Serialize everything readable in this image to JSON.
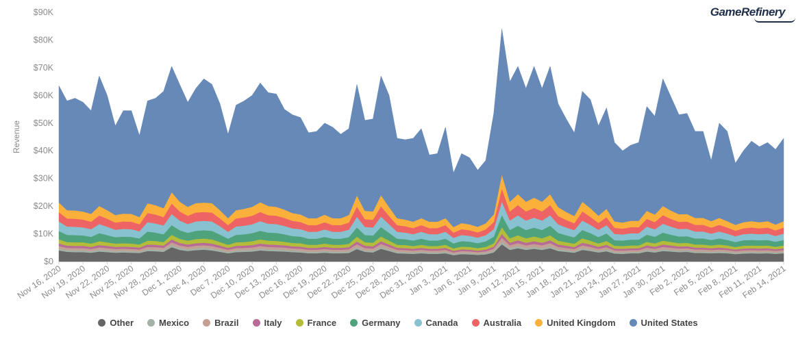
{
  "brand": {
    "name": "GameRefinery"
  },
  "chart_data": {
    "type": "area",
    "stacked": true,
    "title": "",
    "xlabel": "",
    "ylabel": "Revenue",
    "ylim": [
      0,
      90000
    ],
    "yticks": [
      0,
      10000,
      20000,
      30000,
      40000,
      50000,
      60000,
      70000,
      80000,
      90000
    ],
    "ytick_labels": [
      "$0",
      "$10K",
      "$20K",
      "$30K",
      "$40K",
      "$50K",
      "$60K",
      "$70K",
      "$80K",
      "$90K"
    ],
    "x": [
      "Nov 16, 2020",
      "Nov 17, 2020",
      "Nov 18, 2020",
      "Nov 19, 2020",
      "Nov 20, 2020",
      "Nov 21, 2020",
      "Nov 22, 2020",
      "Nov 23, 2020",
      "Nov 24, 2020",
      "Nov 25, 2020",
      "Nov 26, 2020",
      "Nov 27, 2020",
      "Nov 28, 2020",
      "Nov 29, 2020",
      "Nov 30, 2020",
      "Dec 1, 2020",
      "Dec 2, 2020",
      "Dec 3, 2020",
      "Dec 4, 2020",
      "Dec 5, 2020",
      "Dec 6, 2020",
      "Dec 7, 2020",
      "Dec 8, 2020",
      "Dec 9, 2020",
      "Dec 10, 2020",
      "Dec 11, 2020",
      "Dec 12, 2020",
      "Dec 13, 2020",
      "Dec 14, 2020",
      "Dec 15, 2020",
      "Dec 16, 2020",
      "Dec 17, 2020",
      "Dec 18, 2020",
      "Dec 19, 2020",
      "Dec 20, 2020",
      "Dec 21, 2020",
      "Dec 22, 2020",
      "Dec 23, 2020",
      "Dec 24, 2020",
      "Dec 25, 2020",
      "Dec 26, 2020",
      "Dec 27, 2020",
      "Dec 28, 2020",
      "Dec 29, 2020",
      "Dec 30, 2020",
      "Dec 31, 2020",
      "Jan 1, 2021",
      "Jan 2, 2021",
      "Jan 3, 2021",
      "Jan 4, 2021",
      "Jan 5, 2021",
      "Jan 6, 2021",
      "Jan 7, 2021",
      "Jan 8, 2021",
      "Jan 9, 2021",
      "Jan 10, 2021",
      "Jan 11, 2021",
      "Jan 12, 2021",
      "Jan 13, 2021",
      "Jan 14, 2021",
      "Jan 15, 2021",
      "Jan 16, 2021",
      "Jan 17, 2021",
      "Jan 18, 2021",
      "Jan 19, 2021",
      "Jan 20, 2021",
      "Jan 21, 2021",
      "Jan 22, 2021",
      "Jan 23, 2021",
      "Jan 24, 2021",
      "Jan 25, 2021",
      "Jan 26, 2021",
      "Jan 27, 2021",
      "Jan 28, 2021",
      "Jan 29, 2021",
      "Jan 30, 2021",
      "Jan 31, 2021",
      "Feb 1, 2021",
      "Feb 2, 2021",
      "Feb 3, 2021",
      "Feb 4, 2021",
      "Feb 5, 2021",
      "Feb 6, 2021",
      "Feb 7, 2021",
      "Feb 8, 2021",
      "Feb 9, 2021",
      "Feb 10, 2021",
      "Feb 11, 2021",
      "Feb 12, 2021",
      "Feb 13, 2021",
      "Feb 14, 2021"
    ],
    "xtick_labels": [
      "Nov 16, 2020",
      "Nov 19, 2020",
      "Nov 22, 2020",
      "Nov 25, 2020",
      "Nov 28, 2020",
      "Dec 1, 2020",
      "Dec 4, 2020",
      "Dec 7, 2020",
      "Dec 10, 2020",
      "Dec 13, 2020",
      "Dec 16, 2020",
      "Dec 19, 2020",
      "Dec 22, 2020",
      "Dec 25, 2020",
      "Dec 28, 2020",
      "Dec 31, 2020",
      "Jan 3, 2021",
      "Jan 6, 2021",
      "Jan 9, 2021",
      "Jan 12, 2021",
      "Jan 15, 2021",
      "Jan 18, 2021",
      "Jan 21, 2021",
      "Jan 24, 2021",
      "Jan 27, 2021",
      "Jan 30, 2021",
      "Feb 2, 2021",
      "Feb 5, 2021",
      "Feb 8, 2021",
      "Feb 11, 2021",
      "Feb 14, 2021"
    ],
    "legend_position": "bottom",
    "grid": false,
    "total": [
      63500,
      58000,
      59000,
      57500,
      54500,
      67000,
      60000,
      49000,
      54500,
      54500,
      45500,
      58000,
      59000,
      61500,
      70500,
      64000,
      57500,
      62500,
      66000,
      64000,
      57000,
      46000,
      56500,
      58000,
      60000,
      64500,
      61000,
      60500,
      55000,
      53000,
      52000,
      46500,
      47000,
      50000,
      48500,
      46000,
      48000,
      64000,
      51000,
      51500,
      67000,
      60000,
      44500,
      44000,
      44500,
      48000,
      38500,
      39000,
      48500,
      32000,
      39000,
      37500,
      33000,
      36500,
      53500,
      84000,
      65000,
      70500,
      62500,
      70500,
      62500,
      70500,
      57000,
      51500,
      46500,
      61500,
      58500,
      49000,
      55500,
      43000,
      40000,
      42000,
      43000,
      56000,
      52500,
      66000,
      59500,
      53000,
      53500,
      47000,
      47000,
      36500,
      50000,
      47000,
      35500,
      40000,
      43500,
      41500,
      43000,
      40500,
      44500
    ],
    "series": [
      {
        "name": "Other",
        "color": "#666666",
        "values": [
          4000,
          3500,
          3400,
          3400,
          3200,
          3600,
          3400,
          3200,
          3300,
          3200,
          3100,
          3800,
          3700,
          3500,
          5200,
          4200,
          3800,
          4100,
          4300,
          4000,
          3500,
          3000,
          3400,
          3500,
          3600,
          4000,
          3800,
          3700,
          3600,
          3400,
          3300,
          3000,
          3000,
          3200,
          3000,
          3000,
          3100,
          4500,
          3500,
          3300,
          4600,
          3800,
          3000,
          2900,
          2800,
          3000,
          2800,
          2800,
          3000,
          2300,
          2700,
          2600,
          2400,
          2600,
          3300,
          6200,
          4200,
          4800,
          4200,
          4600,
          4200,
          4800,
          3800,
          3500,
          3200,
          4200,
          3800,
          3300,
          3700,
          2900,
          2800,
          3000,
          3000,
          3600,
          3300,
          3800,
          3600,
          3400,
          3500,
          3100,
          3100,
          3000,
          3100,
          3000,
          2700,
          2900,
          3000,
          2900,
          3000,
          2800,
          3000
        ]
      },
      {
        "name": "Mexico",
        "color": "#a3b1a6",
        "values": [
          700,
          650,
          650,
          650,
          600,
          650,
          650,
          600,
          600,
          600,
          550,
          650,
          650,
          650,
          750,
          700,
          650,
          700,
          700,
          700,
          650,
          550,
          650,
          650,
          650,
          700,
          650,
          650,
          650,
          600,
          600,
          550,
          550,
          600,
          550,
          550,
          600,
          750,
          600,
          600,
          750,
          650,
          550,
          550,
          500,
          550,
          500,
          500,
          550,
          450,
          500,
          500,
          450,
          500,
          600,
          1000,
          700,
          800,
          700,
          750,
          700,
          800,
          650,
          600,
          550,
          700,
          650,
          550,
          650,
          500,
          500,
          500,
          500,
          600,
          550,
          650,
          600,
          550,
          550,
          550,
          550,
          500,
          550,
          500,
          450,
          500,
          500,
          500,
          500,
          450,
          500
        ]
      },
      {
        "name": "Brazil",
        "color": "#c4a094",
        "values": [
          900,
          800,
          800,
          800,
          750,
          850,
          800,
          750,
          750,
          750,
          700,
          850,
          850,
          800,
          1000,
          900,
          850,
          900,
          900,
          900,
          800,
          700,
          800,
          800,
          850,
          900,
          850,
          850,
          800,
          750,
          750,
          700,
          700,
          750,
          700,
          700,
          750,
          1000,
          800,
          800,
          1000,
          850,
          700,
          700,
          650,
          700,
          650,
          650,
          700,
          550,
          600,
          600,
          550,
          600,
          750,
          1400,
          950,
          1050,
          950,
          1000,
          950,
          1050,
          850,
          800,
          750,
          950,
          850,
          750,
          850,
          650,
          650,
          650,
          650,
          800,
          750,
          850,
          800,
          750,
          750,
          700,
          700,
          650,
          700,
          650,
          600,
          650,
          650,
          650,
          650,
          600,
          650
        ]
      },
      {
        "name": "Italy",
        "color": "#b86b96",
        "values": [
          900,
          800,
          800,
          800,
          750,
          850,
          800,
          750,
          750,
          750,
          700,
          850,
          850,
          800,
          1000,
          900,
          850,
          900,
          900,
          900,
          800,
          700,
          800,
          800,
          850,
          900,
          850,
          850,
          800,
          750,
          750,
          700,
          700,
          750,
          700,
          700,
          750,
          1000,
          800,
          800,
          1000,
          850,
          700,
          700,
          650,
          700,
          650,
          650,
          700,
          550,
          600,
          600,
          550,
          600,
          750,
          1400,
          950,
          1050,
          950,
          1000,
          950,
          1050,
          850,
          800,
          750,
          950,
          850,
          750,
          850,
          650,
          650,
          650,
          650,
          800,
          750,
          850,
          800,
          750,
          750,
          700,
          700,
          650,
          700,
          650,
          600,
          650,
          650,
          650,
          650,
          600,
          650
        ]
      },
      {
        "name": "France",
        "color": "#b5bc3a",
        "values": [
          1500,
          1300,
          1300,
          1300,
          1200,
          1400,
          1300,
          1200,
          1200,
          1200,
          1100,
          1400,
          1400,
          1300,
          1700,
          1500,
          1400,
          1500,
          1500,
          1500,
          1300,
          1100,
          1300,
          1300,
          1400,
          1500,
          1400,
          1400,
          1300,
          1200,
          1200,
          1100,
          1100,
          1200,
          1100,
          1100,
          1200,
          1700,
          1300,
          1300,
          1700,
          1400,
          1100,
          1100,
          1000,
          1100,
          1000,
          1000,
          1100,
          900,
          1000,
          1000,
          900,
          1000,
          1200,
          2400,
          1600,
          1800,
          1600,
          1700,
          1600,
          1800,
          1400,
          1300,
          1200,
          1600,
          1400,
          1200,
          1400,
          1000,
          1000,
          1000,
          1000,
          1300,
          1200,
          1400,
          1300,
          1200,
          1200,
          1100,
          1100,
          1000,
          1100,
          1000,
          900,
          1000,
          1000,
          1000,
          1000,
          900,
          1000
        ]
      },
      {
        "name": "Germany",
        "color": "#4ea37c",
        "values": [
          3000,
          2600,
          2600,
          2500,
          2400,
          2900,
          2600,
          2300,
          2400,
          2400,
          2200,
          3300,
          3000,
          2800,
          3500,
          3100,
          2800,
          3000,
          3000,
          3100,
          2700,
          2200,
          2700,
          2800,
          2900,
          3100,
          2900,
          2900,
          2700,
          2500,
          2400,
          2200,
          2200,
          2400,
          2200,
          2200,
          2400,
          3400,
          2600,
          2600,
          3400,
          2800,
          2200,
          2100,
          2000,
          2200,
          2000,
          2000,
          2200,
          1800,
          2000,
          1900,
          1800,
          2000,
          2400,
          4400,
          3000,
          3400,
          3000,
          3200,
          3000,
          3400,
          2800,
          2500,
          2300,
          3000,
          2700,
          2300,
          2700,
          2000,
          2000,
          2100,
          2100,
          2600,
          2400,
          2900,
          2600,
          2400,
          2400,
          2200,
          2200,
          2000,
          2200,
          2000,
          1800,
          2000,
          2000,
          2000,
          2000,
          1800,
          2000
        ]
      },
      {
        "name": "Canada",
        "color": "#88c1cf",
        "values": [
          3500,
          3000,
          3000,
          2900,
          2800,
          3300,
          3000,
          2700,
          2800,
          2800,
          2600,
          3400,
          3300,
          3200,
          4000,
          3500,
          3200,
          3400,
          3400,
          3400,
          3000,
          2500,
          3000,
          3100,
          3200,
          3500,
          3200,
          3200,
          3000,
          2800,
          2700,
          2500,
          2500,
          2700,
          2500,
          2500,
          2700,
          3800,
          2900,
          2900,
          3800,
          3100,
          2500,
          2400,
          2300,
          2500,
          2300,
          2300,
          2500,
          2000,
          2200,
          2100,
          2000,
          2200,
          2700,
          4900,
          3400,
          3800,
          3400,
          3600,
          3400,
          3800,
          3100,
          2800,
          2600,
          3400,
          3000,
          2600,
          3000,
          2300,
          2200,
          2300,
          2300,
          2900,
          2700,
          3200,
          2900,
          2700,
          2700,
          2500,
          2500,
          2300,
          2500,
          2300,
          2100,
          2200,
          2300,
          2200,
          2300,
          2100,
          2300
        ]
      },
      {
        "name": "Australia",
        "color": "#ee6464",
        "values": [
          3300,
          2900,
          2900,
          2800,
          2700,
          3100,
          2900,
          2600,
          2700,
          2700,
          2500,
          3300,
          3200,
          3000,
          3800,
          3300,
          3000,
          3200,
          3200,
          3200,
          2800,
          2400,
          2900,
          3000,
          3100,
          3300,
          3100,
          3000,
          2900,
          2700,
          2600,
          2400,
          2400,
          2600,
          2400,
          2400,
          2600,
          3700,
          2800,
          2800,
          3700,
          3000,
          2400,
          2300,
          2200,
          2400,
          2200,
          2200,
          2400,
          1900,
          2100,
          2000,
          1900,
          2100,
          2600,
          4700,
          3300,
          3700,
          3300,
          3500,
          3300,
          3700,
          3000,
          2700,
          2500,
          3300,
          2900,
          2500,
          2900,
          2200,
          2100,
          2200,
          2200,
          2800,
          2600,
          3100,
          2800,
          2600,
          2600,
          2400,
          2400,
          2200,
          2400,
          2200,
          2000,
          2100,
          2200,
          2100,
          2200,
          2000,
          2200
        ]
      },
      {
        "name": "United Kingdom",
        "color": "#fbb03b",
        "values": [
          3500,
          3000,
          3000,
          2900,
          2800,
          3400,
          3100,
          2700,
          2800,
          2800,
          2600,
          3500,
          3400,
          3200,
          4100,
          3500,
          3200,
          3400,
          3400,
          3400,
          3000,
          2500,
          3000,
          3100,
          3200,
          3500,
          3300,
          3200,
          3000,
          2800,
          2700,
          2500,
          2500,
          2700,
          2500,
          2500,
          2700,
          4000,
          3000,
          3000,
          4000,
          3200,
          2500,
          2400,
          2300,
          2500,
          2300,
          2300,
          2500,
          2000,
          2200,
          2100,
          2000,
          2200,
          2700,
          5100,
          3500,
          3900,
          3500,
          3700,
          3500,
          3900,
          3200,
          2900,
          2600,
          3500,
          3100,
          2600,
          3000,
          2300,
          2200,
          2300,
          2300,
          2900,
          2700,
          3300,
          3000,
          2700,
          2700,
          2500,
          2500,
          2300,
          2500,
          2300,
          2100,
          2200,
          2300,
          2200,
          2300,
          2100,
          2300
        ]
      },
      {
        "name": "United States",
        "color": "#6689b7",
        "values": [
          42200,
          39450,
          40550,
          38350,
          34700,
          47950,
          41450,
          32850,
          37450,
          37500,
          28350,
          39150,
          40850,
          43750,
          45850,
          43400,
          38850,
          42400,
          45700,
          43600,
          38450,
          29550,
          38500,
          40050,
          41450,
          44000,
          40950,
          40750,
          37300,
          37000,
          36650,
          31000,
          31450,
          33850,
          32850,
          31200,
          31100,
          41900,
          31900,
          32700,
          42700,
          39000,
          29100,
          29100,
          30800,
          32600,
          23800,
          24300,
          33600,
          19700,
          26300,
          25400,
          22150,
          24500,
          37200,
          51300,
          41700,
          43200,
          37100,
          47000,
          39200,
          46600,
          34900,
          31000,
          26300,
          41200,
          40600,
          32600,
          38000,
          29450,
          26600,
          28100,
          28950,
          38700,
          35600,
          47500,
          42300,
          37400,
          37500,
          31900,
          31900,
          21200,
          34800,
          32900,
          21400,
          25600,
          28700,
          27400,
          28600,
          27000,
          30000
        ]
      }
    ]
  }
}
